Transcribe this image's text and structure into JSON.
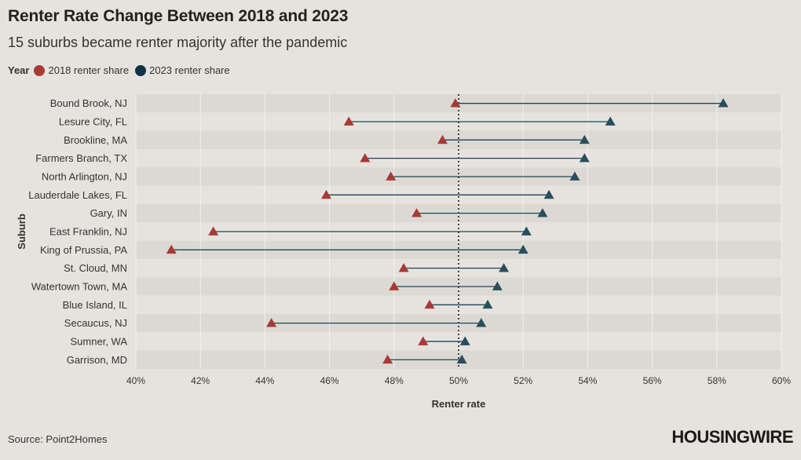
{
  "title": "Renter Rate Change Between 2018 and 2023",
  "subtitle": "15 suburbs became renter majority after the pandemic",
  "legend": {
    "title": "Year",
    "items": [
      {
        "label": "2018 renter share",
        "color": "#a83a36"
      },
      {
        "label": "2023 renter share",
        "color": "#0e3344"
      }
    ]
  },
  "source": "Source: Point2Homes",
  "logo": "HOUSINGWIRE",
  "chart_data": {
    "type": "dumbbell",
    "title": "Renter Rate Change Between 2018 and 2023",
    "xlabel": "Renter rate",
    "ylabel": "Suburb",
    "xlim": [
      40,
      60
    ],
    "xticks": [
      40,
      42,
      44,
      46,
      48,
      50,
      52,
      54,
      56,
      58,
      60
    ],
    "xtick_labels": [
      "40%",
      "42%",
      "44%",
      "46%",
      "48%",
      "50%",
      "52%",
      "54%",
      "56%",
      "58%",
      "60%"
    ],
    "reference_line": 50,
    "categories": [
      "Bound Brook, NJ",
      "Lesure City, FL",
      "Brookline, MA",
      "Farmers Branch, TX",
      "North Arlington, NJ",
      "Lauderdale Lakes, FL",
      "Gary, IN",
      "East Franklin, NJ",
      "King of Prussia, PA",
      "St. Cloud, MN",
      "Watertown Town, MA",
      "Blue Island, IL",
      "Secaucus, NJ",
      "Sumner, WA",
      "Garrison, MD"
    ],
    "series": [
      {
        "name": "2018 renter share",
        "values": [
          49.9,
          46.6,
          49.5,
          47.1,
          47.9,
          45.9,
          48.7,
          42.4,
          41.1,
          48.3,
          48.0,
          49.1,
          44.2,
          48.9,
          47.8
        ]
      },
      {
        "name": "2023 renter share",
        "values": [
          58.2,
          54.7,
          53.9,
          53.9,
          53.6,
          52.8,
          52.6,
          52.1,
          52.0,
          51.4,
          51.2,
          50.9,
          50.7,
          50.2,
          50.1
        ]
      }
    ]
  }
}
